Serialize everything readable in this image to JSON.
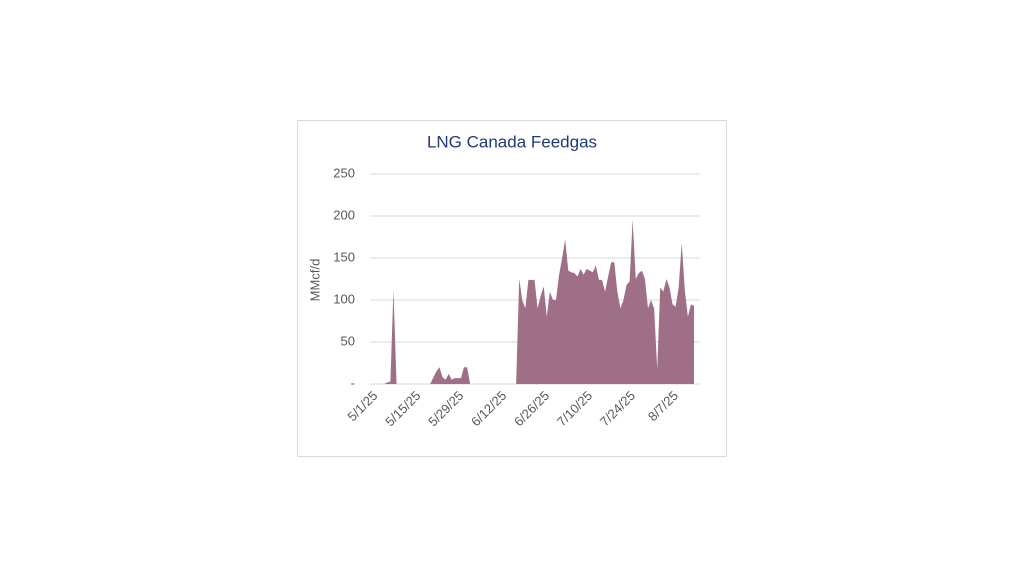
{
  "chart_data": {
    "type": "area",
    "title": "LNG Canada Feedgas",
    "y_label": "MMcf/d",
    "color": "#9e6f86",
    "grid": true,
    "categories": [
      "5/1/25",
      null,
      null,
      null,
      null,
      null,
      null,
      null,
      null,
      null,
      null,
      null,
      null,
      null,
      "5/15/25",
      null,
      null,
      null,
      null,
      null,
      null,
      null,
      null,
      null,
      null,
      null,
      null,
      null,
      "5/29/25",
      null,
      null,
      null,
      null,
      null,
      null,
      null,
      null,
      null,
      null,
      null,
      null,
      null,
      "6/12/25",
      null,
      null,
      null,
      null,
      null,
      null,
      null,
      null,
      null,
      null,
      null,
      null,
      null,
      "6/26/25",
      null,
      null,
      null,
      null,
      null,
      null,
      null,
      null,
      null,
      null,
      null,
      null,
      null,
      "7/10/25",
      null,
      null,
      null,
      null,
      null,
      null,
      null,
      null,
      null,
      null,
      null,
      null,
      null,
      "7/24/25",
      null,
      null,
      null,
      null,
      null,
      null,
      null,
      null,
      null,
      null,
      null,
      null,
      null,
      "8/7/25",
      null,
      null,
      null,
      null,
      null,
      null,
      null
    ],
    "values": [
      0,
      0,
      0,
      0,
      0,
      2,
      3,
      112,
      0,
      0,
      0,
      0,
      0,
      0,
      0,
      0,
      0,
      0,
      0,
      0,
      8,
      15,
      20,
      8,
      5,
      12,
      5,
      7,
      7,
      7,
      20,
      20,
      0,
      0,
      0,
      0,
      0,
      0,
      0,
      0,
      0,
      0,
      0,
      0,
      0,
      0,
      0,
      0,
      125,
      100,
      90,
      124,
      124,
      124,
      90,
      105,
      116,
      80,
      110,
      100,
      100,
      130,
      150,
      172,
      135,
      133,
      132,
      128,
      137,
      130,
      137,
      135,
      133,
      141,
      124,
      124,
      110,
      128,
      145,
      145,
      110,
      90,
      100,
      118,
      122,
      196,
      125,
      132,
      135,
      125,
      90,
      100,
      90,
      18,
      115,
      110,
      125,
      115,
      95,
      92,
      115,
      168,
      112,
      80,
      95,
      93
    ],
    "ylim": [
      0,
      250
    ],
    "yticks": [
      {
        "value": 0,
        "label": "-"
      },
      50,
      100,
      150,
      200,
      250
    ]
  }
}
